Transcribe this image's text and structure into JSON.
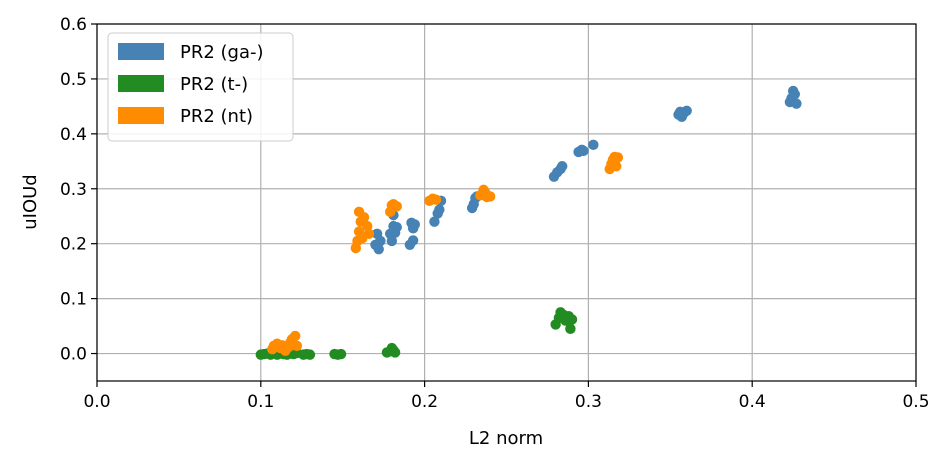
{
  "chart_data": {
    "type": "scatter",
    "title": "",
    "xlabel": "L2 norm",
    "ylabel": "uIOUd",
    "xlim": [
      0.0,
      0.5
    ],
    "ylim": [
      -0.05,
      0.6
    ],
    "xticks": [
      "0.0",
      "0.1",
      "0.2",
      "0.3",
      "0.4",
      "0.5"
    ],
    "yticks": [
      "0.0",
      "0.1",
      "0.2",
      "0.3",
      "0.4",
      "0.5",
      "0.6"
    ],
    "grid": true,
    "legend_position": "top-left",
    "series": [
      {
        "name": "PR2 (ga-)",
        "color": "#4682b4",
        "points": [
          [
            0.17,
            0.198
          ],
          [
            0.171,
            0.218
          ],
          [
            0.172,
            0.19
          ],
          [
            0.173,
            0.205
          ],
          [
            0.179,
            0.218
          ],
          [
            0.18,
            0.205
          ],
          [
            0.181,
            0.232
          ],
          [
            0.181,
            0.252
          ],
          [
            0.182,
            0.22
          ],
          [
            0.183,
            0.23
          ],
          [
            0.191,
            0.198
          ],
          [
            0.192,
            0.238
          ],
          [
            0.193,
            0.228
          ],
          [
            0.194,
            0.235
          ],
          [
            0.193,
            0.206
          ],
          [
            0.206,
            0.24
          ],
          [
            0.208,
            0.255
          ],
          [
            0.209,
            0.262
          ],
          [
            0.21,
            0.278
          ],
          [
            0.229,
            0.265
          ],
          [
            0.23,
            0.272
          ],
          [
            0.231,
            0.283
          ],
          [
            0.232,
            0.286
          ],
          [
            0.279,
            0.322
          ],
          [
            0.281,
            0.33
          ],
          [
            0.283,
            0.336
          ],
          [
            0.284,
            0.341
          ],
          [
            0.294,
            0.367
          ],
          [
            0.296,
            0.371
          ],
          [
            0.297,
            0.369
          ],
          [
            0.303,
            0.38
          ],
          [
            0.355,
            0.435
          ],
          [
            0.356,
            0.44
          ],
          [
            0.357,
            0.431
          ],
          [
            0.358,
            0.437
          ],
          [
            0.36,
            0.442
          ],
          [
            0.423,
            0.458
          ],
          [
            0.424,
            0.465
          ],
          [
            0.425,
            0.478
          ],
          [
            0.426,
            0.472
          ],
          [
            0.427,
            0.455
          ]
        ]
      },
      {
        "name": "PR2 (t-)",
        "color": "#228b22",
        "points": [
          [
            0.1,
            -0.002
          ],
          [
            0.102,
            -0.001
          ],
          [
            0.104,
            0.0
          ],
          [
            0.106,
            -0.002
          ],
          [
            0.108,
            0.001
          ],
          [
            0.11,
            -0.002
          ],
          [
            0.112,
            0.0
          ],
          [
            0.114,
            -0.001
          ],
          [
            0.116,
            -0.002
          ],
          [
            0.118,
            0.0
          ],
          [
            0.12,
            -0.001
          ],
          [
            0.122,
            0.001
          ],
          [
            0.126,
            -0.002
          ],
          [
            0.128,
            -0.001
          ],
          [
            0.13,
            -0.002
          ],
          [
            0.145,
            -0.001
          ],
          [
            0.147,
            -0.002
          ],
          [
            0.149,
            -0.001
          ],
          [
            0.177,
            0.002
          ],
          [
            0.179,
            0.004
          ],
          [
            0.18,
            0.01
          ],
          [
            0.181,
            0.006
          ],
          [
            0.182,
            0.002
          ],
          [
            0.28,
            0.053
          ],
          [
            0.282,
            0.065
          ],
          [
            0.283,
            0.075
          ],
          [
            0.285,
            0.07
          ],
          [
            0.286,
            0.06
          ],
          [
            0.288,
            0.068
          ],
          [
            0.289,
            0.045
          ],
          [
            0.29,
            0.062
          ]
        ]
      },
      {
        "name": "PR2 (nt)",
        "color": "#ff8c00",
        "points": [
          [
            0.107,
            0.008
          ],
          [
            0.108,
            0.014
          ],
          [
            0.11,
            0.018
          ],
          [
            0.112,
            0.01
          ],
          [
            0.113,
            0.015
          ],
          [
            0.115,
            0.005
          ],
          [
            0.117,
            0.012
          ],
          [
            0.118,
            0.02
          ],
          [
            0.119,
            0.026
          ],
          [
            0.12,
            0.016
          ],
          [
            0.121,
            0.032
          ],
          [
            0.122,
            0.014
          ],
          [
            0.158,
            0.192
          ],
          [
            0.159,
            0.205
          ],
          [
            0.16,
            0.222
          ],
          [
            0.16,
            0.258
          ],
          [
            0.161,
            0.24
          ],
          [
            0.162,
            0.21
          ],
          [
            0.163,
            0.248
          ],
          [
            0.165,
            0.232
          ],
          [
            0.166,
            0.218
          ],
          [
            0.179,
            0.258
          ],
          [
            0.18,
            0.27
          ],
          [
            0.181,
            0.272
          ],
          [
            0.183,
            0.268
          ],
          [
            0.203,
            0.278
          ],
          [
            0.205,
            0.282
          ],
          [
            0.207,
            0.28
          ],
          [
            0.234,
            0.288
          ],
          [
            0.236,
            0.298
          ],
          [
            0.237,
            0.293
          ],
          [
            0.238,
            0.285
          ],
          [
            0.24,
            0.286
          ],
          [
            0.313,
            0.336
          ],
          [
            0.314,
            0.345
          ],
          [
            0.315,
            0.353
          ],
          [
            0.316,
            0.358
          ],
          [
            0.317,
            0.341
          ],
          [
            0.318,
            0.357
          ]
        ]
      }
    ]
  }
}
